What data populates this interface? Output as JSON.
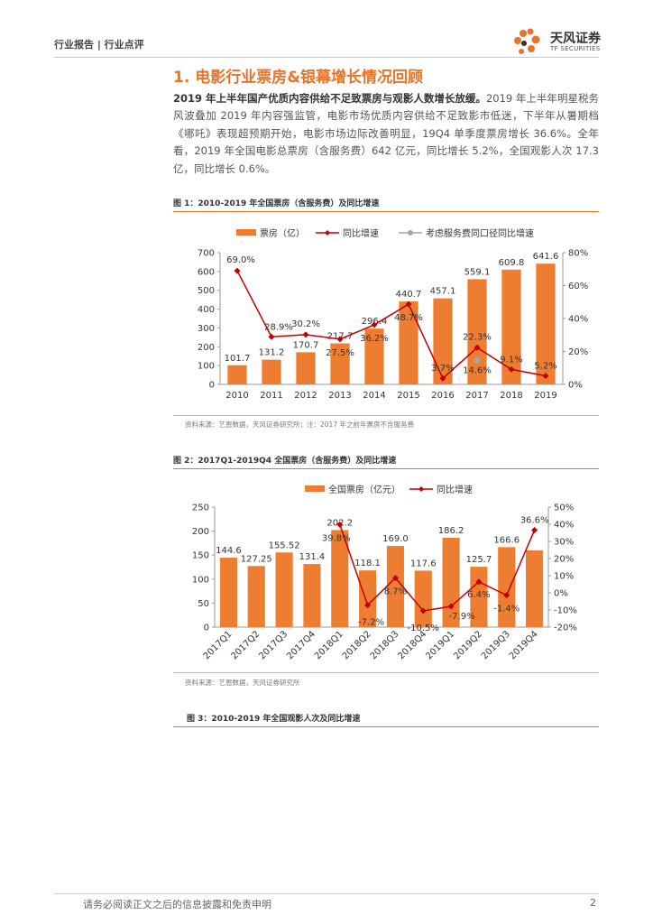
{
  "header": {
    "breadcrumb": "行业报告 | 行业点评"
  },
  "brand": {
    "name": "天风证券",
    "sub": "TF SECURITIES"
  },
  "section": {
    "title": "1. 电影行业票房&银幕增长情况回顾",
    "lead": "2019 年上半年国产优质内容供给不足致票房与观影人数增长放缓。",
    "body": "2019 年上半年明星税务风波叠加 2019 年内容强监管，电影市场优质内容供给不足致影市低迷，下半年从暑期档《哪吒》表现超预期开始，电影市场边际改善明显，19Q4 单季度票房增长 36.6%。全年看，2019 年全国电影总票房（含服务费）642 亿元，同比增长 5.2%，全国观影人次 17.3 亿，同比增长 0.6%。"
  },
  "fig1": {
    "title": "图 1：2010-2019 年全国票房（含服务费）及同比增速",
    "source": "资料来源：艺恩数据，天风证券研究所；注：2017 年之前年票房不含服务费"
  },
  "fig2": {
    "title": "图 2：2017Q1-2019Q4 全国票房（含服务费）及同比增速",
    "source": "资料来源：艺恩数据，天风证券研究所"
  },
  "fig3": {
    "title": "图 3：2010-2019 年全国观影人次及同比增速"
  },
  "footer": {
    "disclaimer": "请务必阅读正文之后的信息披露和免责申明",
    "page": "2"
  },
  "colors": {
    "bar": "#ed7d31",
    "line": "#c00000",
    "gray": "#a6a6a6",
    "accent": "#e8742a"
  },
  "chart_data": [
    {
      "type": "bar",
      "title": "2010-2019 年全国票房（含服务费）及同比增速",
      "categories": [
        "2010",
        "2011",
        "2012",
        "2013",
        "2014",
        "2015",
        "2016",
        "2017",
        "2018",
        "2019"
      ],
      "series": [
        {
          "name": "票房（亿）",
          "kind": "bar",
          "axis": "left",
          "values": [
            101.7,
            131.2,
            170.7,
            217.7,
            296.4,
            440.7,
            457.1,
            559.1,
            609.8,
            641.6
          ],
          "labels": [
            "101.7",
            "131.2",
            "170.7",
            "217.7",
            "296.4",
            "440.7",
            "457.1",
            "559.1",
            "609.8",
            "641.6"
          ]
        },
        {
          "name": "同比增速",
          "kind": "line",
          "axis": "right",
          "values": [
            69.0,
            28.9,
            30.2,
            27.5,
            36.2,
            48.7,
            3.7,
            22.3,
            9.1,
            5.2
          ],
          "labels": [
            "69.0%",
            "28.9%",
            "30.2%",
            "27.5%",
            "36.2%",
            "48.7%",
            "3.7%",
            "22.3%",
            "9.1%",
            "5.2%"
          ]
        },
        {
          "name": "考虑服务费同口径同比增速",
          "kind": "point",
          "axis": "right",
          "values": [
            null,
            null,
            null,
            null,
            null,
            null,
            null,
            14.6,
            null,
            null
          ],
          "labels": [
            "",
            "",
            "",
            "",
            "",
            "",
            "",
            "14.6%",
            "",
            ""
          ]
        }
      ],
      "ylim": [
        0,
        700
      ],
      "y_ticks": [
        "0",
        "100",
        "200",
        "300",
        "400",
        "500",
        "600",
        "700"
      ],
      "y2lim": [
        0,
        80
      ],
      "y2_ticks": [
        "0%",
        "20%",
        "40%",
        "60%",
        "80%"
      ],
      "legend": "top"
    },
    {
      "type": "bar",
      "title": "2017Q1-2019Q4 全国票房（含服务费）及同比增速",
      "categories": [
        "2017Q1",
        "2017Q2",
        "2017Q3",
        "2017Q4",
        "2018Q1",
        "2018Q2",
        "2018Q3",
        "2018Q4",
        "2019Q1",
        "2019Q2",
        "2019Q3",
        "2019Q4"
      ],
      "series": [
        {
          "name": "全国票房（亿元）",
          "kind": "bar",
          "axis": "left",
          "values": [
            144.6,
            127.25,
            155.52,
            131.4,
            202.2,
            118.1,
            169.0,
            117.6,
            186.2,
            125.7,
            166.6,
            160.0
          ],
          "labels": [
            "144.6",
            "127.25",
            "155.52",
            "131.4",
            "202.2",
            "118.1",
            "169.0",
            "117.6",
            "186.2",
            "125.7",
            "166.6",
            ""
          ]
        },
        {
          "name": "同比增速",
          "kind": "line",
          "axis": "right",
          "values": [
            null,
            null,
            null,
            null,
            39.8,
            -7.2,
            8.7,
            -10.5,
            -7.9,
            6.4,
            -1.4,
            36.6
          ],
          "labels": [
            "",
            "",
            "",
            "",
            "39.8%",
            "-7.2%",
            "8.7%",
            "-10.5%",
            "-7.9%",
            "6.4%",
            "-1.4%",
            "36.6%"
          ]
        }
      ],
      "ylim": [
        0,
        250
      ],
      "y_ticks": [
        "0",
        "50",
        "100",
        "150",
        "200",
        "250"
      ],
      "y2lim": [
        -20,
        50
      ],
      "y2_ticks": [
        "-20%",
        "-10%",
        "0%",
        "10%",
        "20%",
        "30%",
        "40%",
        "50%"
      ],
      "legend": "top"
    }
  ]
}
